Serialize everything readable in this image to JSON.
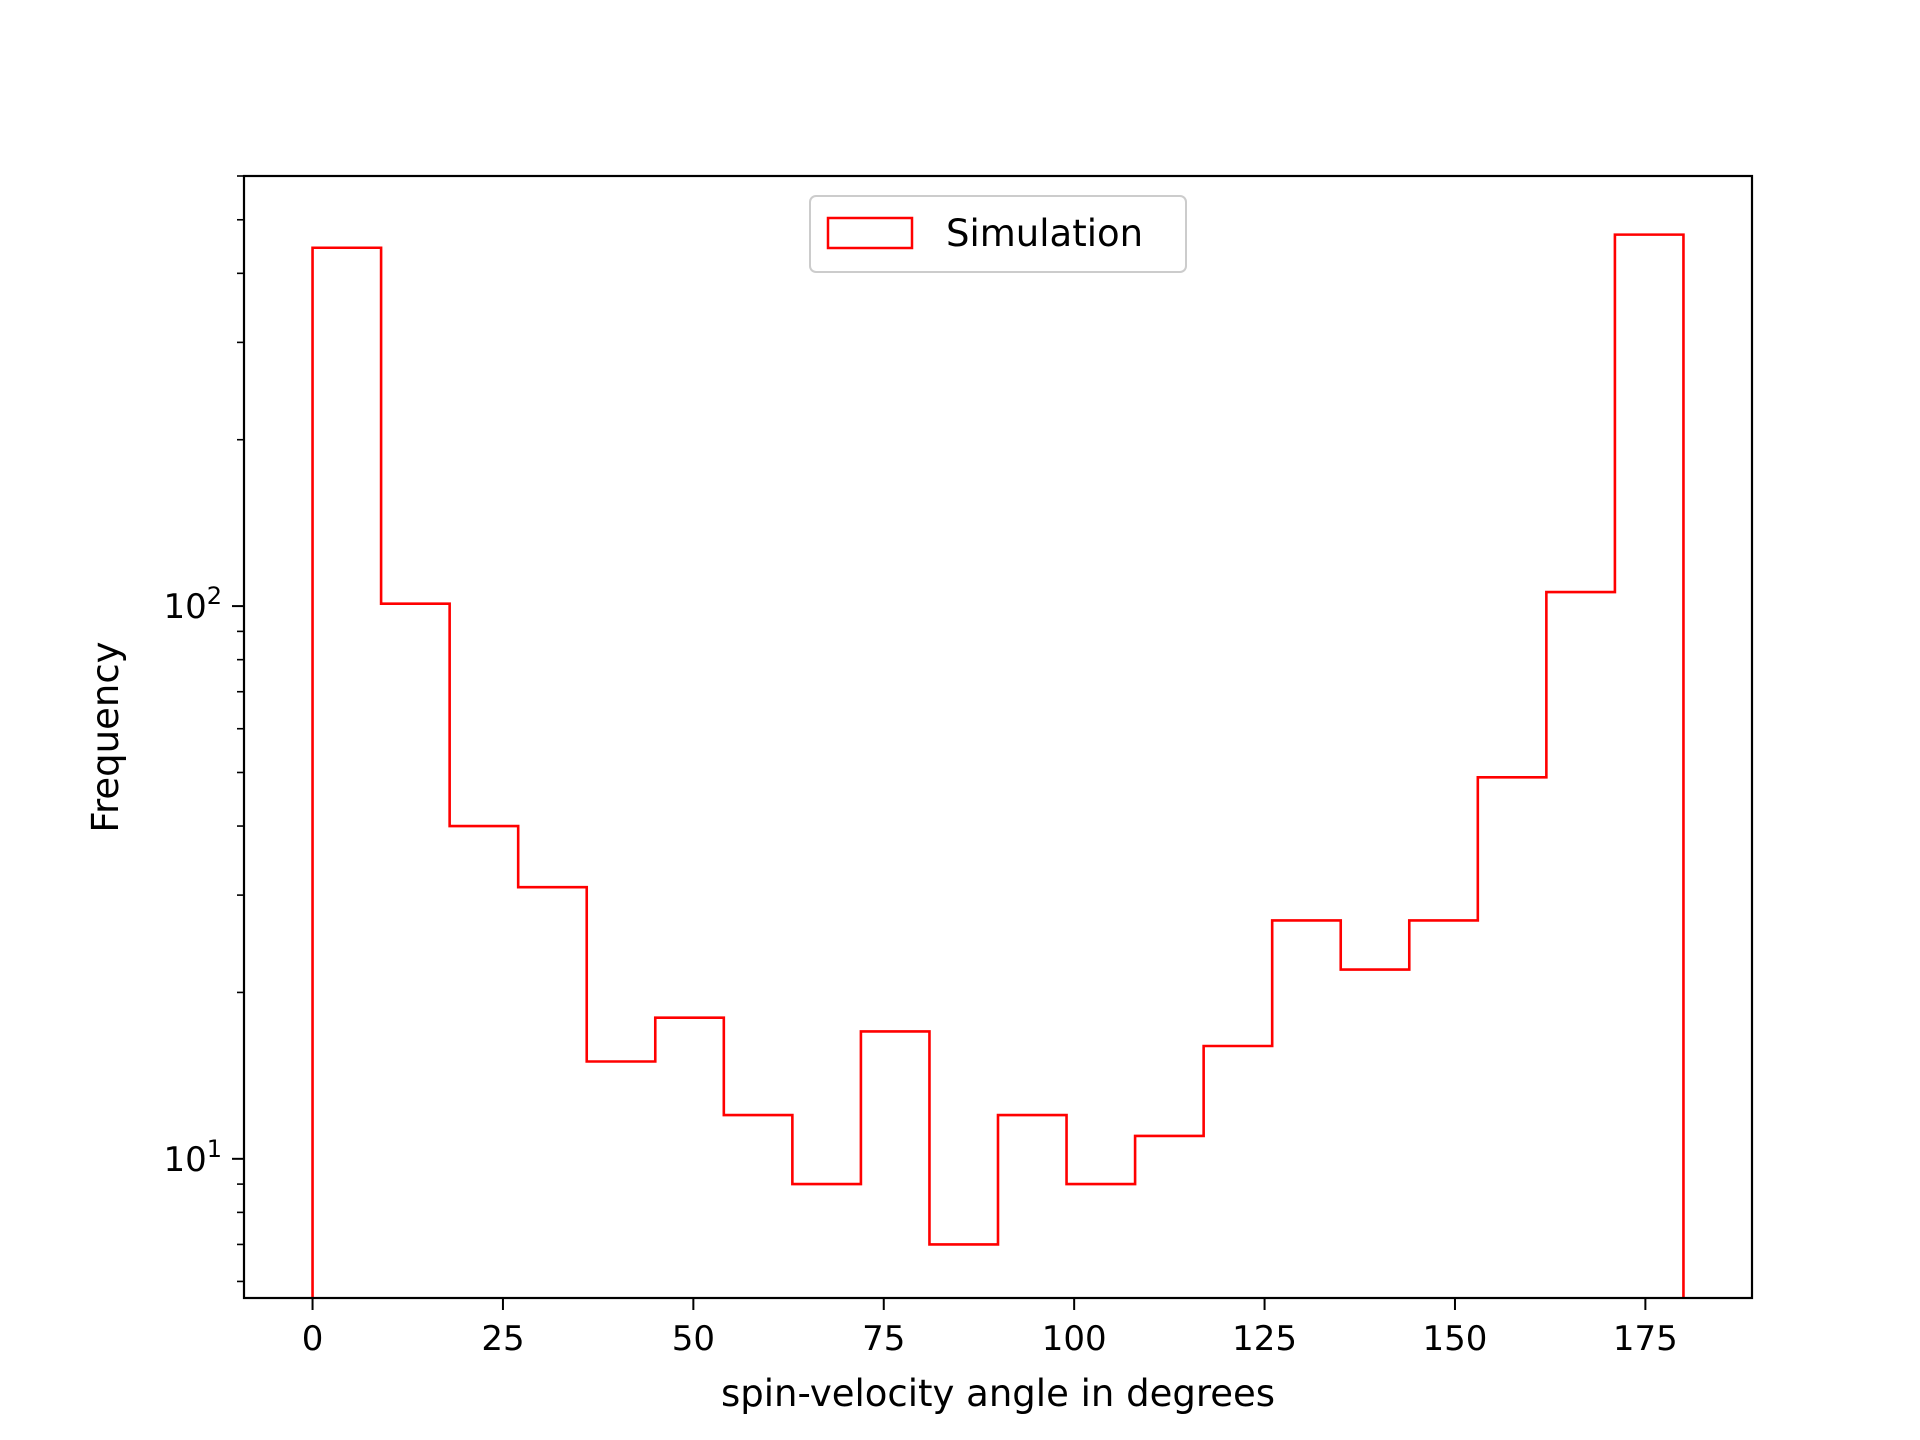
{
  "chart_data": {
    "type": "histogram",
    "title": "",
    "xlabel": "spin-velocity angle in degrees",
    "ylabel": "Frequency",
    "yscale": "log",
    "xlim": [
      -9,
      189
    ],
    "ylim": [
      5.6,
      600
    ],
    "grid": false,
    "legend": {
      "placement": "upper center"
    },
    "x_ticks": [
      {
        "value": 0,
        "label": "0"
      },
      {
        "value": 25,
        "label": "25"
      },
      {
        "value": 50,
        "label": "50"
      },
      {
        "value": 75,
        "label": "75"
      },
      {
        "value": 100,
        "label": "100"
      },
      {
        "value": 125,
        "label": "125"
      },
      {
        "value": 150,
        "label": "150"
      },
      {
        "value": 175,
        "label": "175"
      }
    ],
    "y_major_ticks": [
      {
        "value": 10,
        "base": "10",
        "exp": "1"
      },
      {
        "value": 100,
        "base": "10",
        "exp": "2"
      }
    ],
    "y_minor_ticks": [
      6,
      7,
      8,
      9,
      20,
      30,
      40,
      50,
      60,
      70,
      80,
      90,
      200,
      300,
      400,
      500,
      600
    ],
    "series": [
      {
        "name": "Simulation",
        "color": "#ff0000",
        "style": "step",
        "bin_edges": [
          0,
          9,
          18,
          27,
          36,
          45,
          54,
          63,
          72,
          81,
          90,
          99,
          108,
          117,
          126,
          135,
          144,
          153,
          162,
          171,
          180
        ],
        "values": [
          445,
          101,
          40,
          31,
          15,
          18,
          12,
          9,
          17,
          7,
          12,
          9,
          11,
          16,
          27,
          22,
          27,
          49,
          106,
          470
        ]
      }
    ]
  }
}
